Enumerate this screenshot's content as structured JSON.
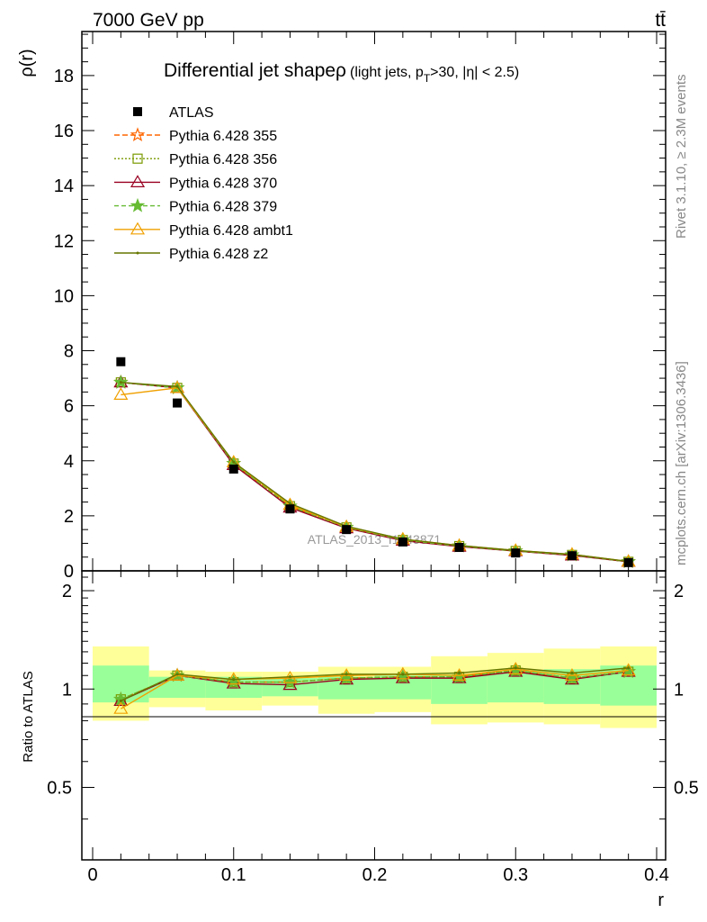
{
  "header": {
    "left_label": "7000 GeV pp",
    "right_label": "tt̄"
  },
  "side_labels": {
    "rivet": "Rivet 3.1.10, ≥ 2.3M events",
    "mcplots": "mcplots.cern.ch [arXiv:1306.3436]"
  },
  "chart_data": [
    {
      "type": "line",
      "title_main": "Differential jet shapeρ",
      "title_sub": "(light jets, p",
      "title_sub_sub": "T",
      "title_sub_tail": ">30, |η| < 2.5)",
      "watermark": "ATLAS_2013_I1243871",
      "ylabel": "ρ(r)",
      "xlim": [
        -0.01,
        0.4
      ],
      "ylim": [
        0,
        19.6
      ],
      "yticks": [
        0,
        2,
        4,
        6,
        8,
        10,
        12,
        14,
        16,
        18
      ],
      "x": [
        0.02,
        0.06,
        0.1,
        0.14,
        0.18,
        0.22,
        0.26,
        0.3,
        0.34,
        0.38
      ],
      "data": {
        "name": "ATLAS",
        "color": "#000000",
        "values": [
          7.6,
          6.1,
          3.7,
          2.25,
          1.5,
          1.05,
          0.85,
          0.65,
          0.55,
          0.3
        ]
      },
      "series": [
        {
          "name": "Pythia 6.428 355",
          "color": "#ff6600",
          "dash": "6,3",
          "marker": "star-open",
          "values": [
            6.85,
            6.65,
            3.9,
            2.35,
            1.58,
            1.12,
            0.9,
            0.72,
            0.58,
            0.33
          ]
        },
        {
          "name": "Pythia 6.428 356",
          "color": "#7a9a00",
          "dash": "2,2",
          "marker": "square-open",
          "values": [
            6.85,
            6.65,
            3.9,
            2.35,
            1.58,
            1.12,
            0.9,
            0.72,
            0.58,
            0.33
          ]
        },
        {
          "name": "Pythia 6.428 370",
          "color": "#990022",
          "dash": "",
          "marker": "triangle-open",
          "values": [
            6.85,
            6.65,
            3.85,
            2.3,
            1.55,
            1.1,
            0.88,
            0.72,
            0.56,
            0.33
          ]
        },
        {
          "name": "Pythia 6.428 379",
          "color": "#66bb33",
          "dash": "5,3",
          "marker": "star-filled",
          "values": [
            6.85,
            6.65,
            3.9,
            2.35,
            1.58,
            1.12,
            0.9,
            0.72,
            0.58,
            0.33
          ]
        },
        {
          "name": "Pythia 6.428 ambt1",
          "color": "#f0a000",
          "dash": "",
          "marker": "triangle-open",
          "values": [
            6.4,
            6.65,
            3.95,
            2.4,
            1.6,
            1.15,
            0.92,
            0.74,
            0.6,
            0.34
          ]
        },
        {
          "name": "Pythia 6.428 z2",
          "color": "#667700",
          "dash": "",
          "marker": "dot",
          "values": [
            6.85,
            6.7,
            3.95,
            2.45,
            1.62,
            1.15,
            0.92,
            0.74,
            0.6,
            0.34
          ]
        }
      ]
    },
    {
      "type": "line",
      "ylabel": "Ratio to ATLAS",
      "xlabel": "r",
      "xlim": [
        -0.01,
        0.4
      ],
      "ylim": [
        0.3,
        2.3
      ],
      "yticks": [
        0.5,
        1,
        2
      ],
      "xticks": [
        0,
        0.1,
        0.2,
        0.3,
        0.4
      ],
      "xticklabels": [
        "0",
        "0.1",
        "0.2",
        "0.3",
        "0.4"
      ],
      "bins": [
        [
          0,
          0.04
        ],
        [
          0.04,
          0.08
        ],
        [
          0.08,
          0.12
        ],
        [
          0.12,
          0.16
        ],
        [
          0.16,
          0.2
        ],
        [
          0.2,
          0.24
        ],
        [
          0.24,
          0.28
        ],
        [
          0.28,
          0.32
        ],
        [
          0.32,
          0.36
        ],
        [
          0.36,
          0.4
        ]
      ],
      "band_inner": {
        "color": "#99ff99",
        "lo": [
          0.91,
          0.94,
          0.94,
          0.95,
          0.93,
          0.93,
          0.9,
          0.91,
          0.9,
          0.89
        ],
        "hi": [
          1.18,
          1.09,
          1.09,
          1.08,
          1.09,
          1.1,
          1.11,
          1.14,
          1.15,
          1.18
        ]
      },
      "band_outer": {
        "color": "#ffff99",
        "lo": [
          0.8,
          0.88,
          0.86,
          0.89,
          0.84,
          0.85,
          0.78,
          0.79,
          0.78,
          0.76
        ],
        "hi": [
          1.35,
          1.14,
          1.13,
          1.13,
          1.17,
          1.17,
          1.26,
          1.29,
          1.33,
          1.35
        ]
      },
      "series": [
        {
          "name": "Pythia 6.428 355",
          "values": [
            0.93,
            1.1,
            1.05,
            1.05,
            1.08,
            1.09,
            1.09,
            1.14,
            1.08,
            1.13
          ]
        },
        {
          "name": "Pythia 6.428 356",
          "values": [
            0.93,
            1.1,
            1.05,
            1.05,
            1.08,
            1.09,
            1.09,
            1.14,
            1.08,
            1.13
          ]
        },
        {
          "name": "Pythia 6.428 370",
          "values": [
            0.92,
            1.1,
            1.04,
            1.03,
            1.07,
            1.08,
            1.08,
            1.13,
            1.07,
            1.13
          ]
        },
        {
          "name": "Pythia 6.428 379",
          "values": [
            0.93,
            1.1,
            1.05,
            1.05,
            1.08,
            1.09,
            1.09,
            1.14,
            1.08,
            1.13
          ]
        },
        {
          "name": "Pythia 6.428 ambt1",
          "values": [
            0.87,
            1.1,
            1.07,
            1.08,
            1.1,
            1.11,
            1.1,
            1.15,
            1.1,
            1.14
          ]
        },
        {
          "name": "Pythia 6.428 z2",
          "values": [
            0.92,
            1.11,
            1.07,
            1.09,
            1.11,
            1.11,
            1.12,
            1.16,
            1.12,
            1.16
          ]
        }
      ]
    }
  ]
}
